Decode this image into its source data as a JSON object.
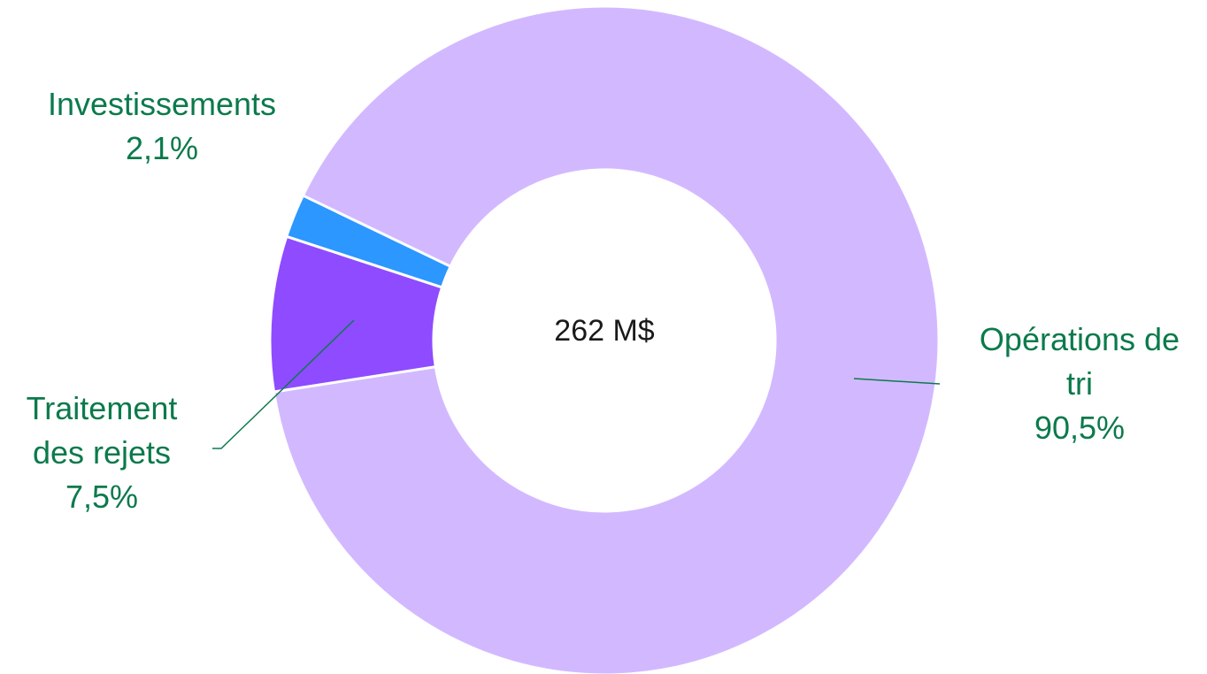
{
  "chart_data": {
    "type": "donut",
    "annotation": "262 M$",
    "categories": [
      "Opérations de tri",
      "Traitement des rejets",
      "Investissements"
    ],
    "values": [
      90.5,
      7.5,
      2.1
    ],
    "value_labels": [
      "90,5%",
      "7,5%",
      "2,1%"
    ],
    "colors": [
      "#d2b9ff",
      "#8f4bff",
      "#2b97ff"
    ]
  }
}
